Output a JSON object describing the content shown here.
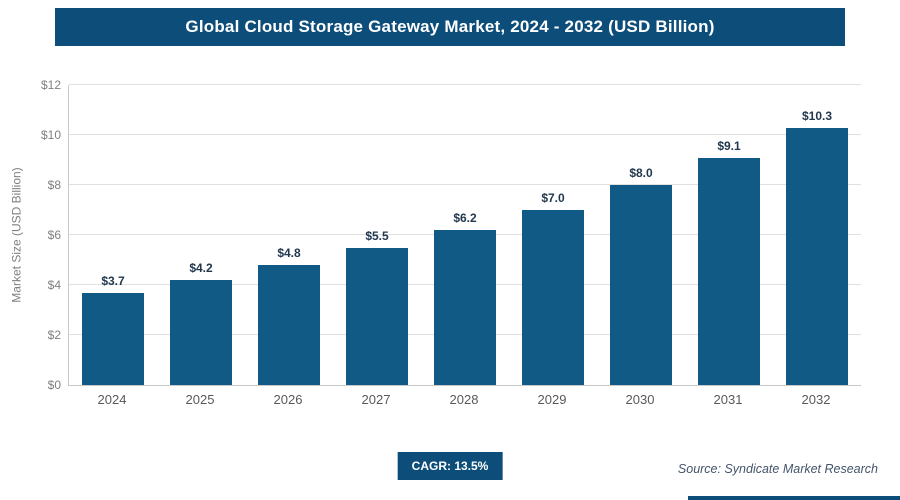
{
  "header": {
    "title": "Global Cloud Storage Gateway Market, 2024 - 2032 (USD Billion)"
  },
  "chart_data": {
    "type": "bar",
    "title": "Global Cloud Storage Gateway Market, 2024 - 2032 (USD Billion)",
    "categories": [
      "2024",
      "2025",
      "2026",
      "2027",
      "2028",
      "2029",
      "2030",
      "2031",
      "2032"
    ],
    "values": [
      3.7,
      4.2,
      4.8,
      5.5,
      6.2,
      7.0,
      8.0,
      9.1,
      10.3
    ],
    "bar_labels": [
      "$3.7",
      "$4.2",
      "$4.8",
      "$5.5",
      "$6.2",
      "$7.0",
      "$8.0",
      "$9.1",
      "$10.3"
    ],
    "xlabel": "",
    "ylabel": "Market Size (USD Billion)",
    "ylim": [
      0,
      12
    ],
    "ytick_labels": [
      "$0",
      "$2",
      "$4",
      "$6",
      "$8",
      "$10",
      "$12"
    ],
    "grid": "horizontal",
    "legend": "none",
    "bar_color": "#115a85"
  },
  "footer": {
    "cagr_label": "CAGR: 13.5%",
    "source": "Source: Syndicate Market Research"
  },
  "colors": {
    "header_bg": "#0d4d7a",
    "bar": "#115a85",
    "accent": "#0d4d7a"
  }
}
